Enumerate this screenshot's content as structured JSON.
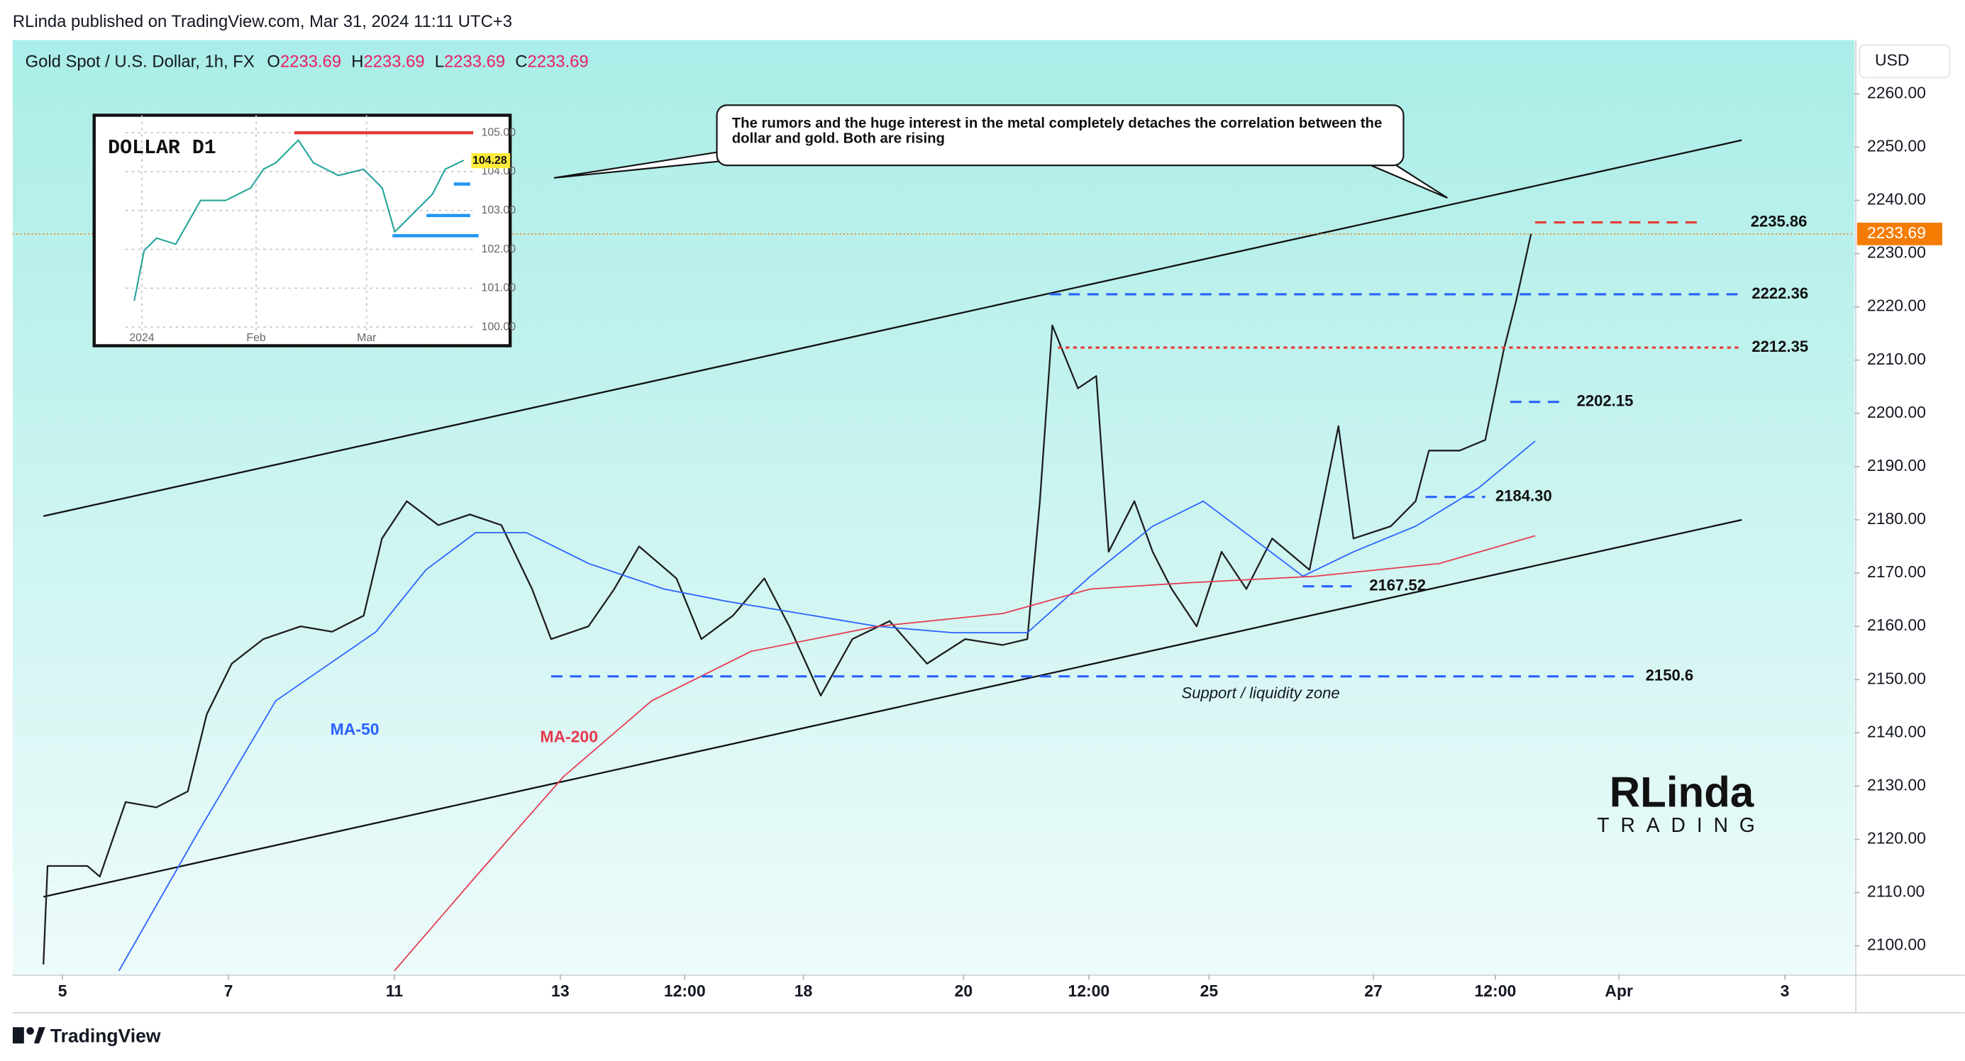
{
  "header": {
    "publisher": "RLinda published on TradingView.com, Mar 31, 2024 11:11 UTC+3",
    "footer": "TradingView",
    "logo": [
      "RLinda",
      "TRADING"
    ]
  },
  "chart_data": [
    {
      "type": "line",
      "title": "Gold Spot / U.S. Dollar, 1h, FX",
      "currency": "USD",
      "ohlc": [
        {
          "label": "O",
          "value": 2233.69
        },
        {
          "label": "H",
          "value": 2233.69
        },
        {
          "label": "L",
          "value": 2233.69
        },
        {
          "label": "C",
          "value": 2233.69
        }
      ],
      "xlim": [
        -0.6,
        21.6
      ],
      "ylim": [
        2094.6,
        2270.1
      ],
      "xticks": [
        {
          "value": 0,
          "label": "5"
        },
        {
          "value": 2,
          "label": "7"
        },
        {
          "value": 4,
          "label": "11"
        },
        {
          "value": 6,
          "label": "13"
        },
        {
          "value": 7.5,
          "label": "12:00"
        },
        {
          "value": 8.93,
          "label": "18"
        },
        {
          "value": 10.86,
          "label": "20"
        },
        {
          "value": 12.37,
          "label": "12:00"
        },
        {
          "value": 13.82,
          "label": "25"
        },
        {
          "value": 15.8,
          "label": "27"
        },
        {
          "value": 17.27,
          "label": "12:00"
        },
        {
          "value": 18.76,
          "label": "Apr"
        },
        {
          "value": 20.76,
          "label": "3"
        }
      ],
      "yticks": [
        {
          "value": 2100,
          "label": "2100.00"
        },
        {
          "value": 2110,
          "label": "2110.00"
        },
        {
          "value": 2120,
          "label": "2120.00"
        },
        {
          "value": 2130,
          "label": "2130.00"
        },
        {
          "value": 2140,
          "label": "2140.00"
        },
        {
          "value": 2150,
          "label": "2150.00"
        },
        {
          "value": 2160,
          "label": "2160.00"
        },
        {
          "value": 2170,
          "label": "2170.00"
        },
        {
          "value": 2180,
          "label": "2180.00"
        },
        {
          "value": 2190,
          "label": "2190.00"
        },
        {
          "value": 2200,
          "label": "2200.00"
        },
        {
          "value": 2210,
          "label": "2210.00"
        },
        {
          "value": 2220,
          "label": "2220.00"
        },
        {
          "value": 2230,
          "label": "2230.00"
        },
        {
          "value": 2240,
          "label": "2240.00"
        },
        {
          "value": 2250,
          "label": "2250.00"
        },
        {
          "value": 2260,
          "label": "2260.00"
        }
      ],
      "grid": false,
      "series": [
        {
          "color": "#1e1e1e",
          "x": [
            -0.23,
            -0.18,
            0.3,
            0.45,
            0.76,
            1.13,
            1.51,
            1.74,
            2.04,
            2.42,
            2.87,
            3.25,
            3.63,
            3.85,
            4.15,
            4.53,
            4.91,
            5.29,
            5.66,
            5.89,
            6.34,
            6.65,
            6.95,
            7.4,
            7.7,
            8.08,
            8.46,
            8.76,
            9.14,
            9.52,
            9.97,
            10.42,
            10.88,
            11.33,
            11.63,
            11.78,
            11.93,
            12.24,
            12.46,
            12.61,
            12.92,
            13.14,
            13.37,
            13.67,
            13.97,
            14.27,
            14.58,
            15.03,
            15.38,
            15.56,
            16.01,
            16.31,
            16.47,
            16.84,
            17.15,
            17.37,
            17.52,
            17.7
          ],
          "values": [
            2096.5,
            2115,
            2115,
            2113,
            2127,
            2126,
            2129,
            2143.5,
            2153,
            2157.6,
            2160,
            2159,
            2162,
            2176.5,
            2183.5,
            2179,
            2181,
            2179,
            2167,
            2157.6,
            2160,
            2167,
            2175,
            2169,
            2157.6,
            2162,
            2169,
            2160,
            2147,
            2157.6,
            2161,
            2153,
            2157.6,
            2156.5,
            2157.6,
            2183.5,
            2216.5,
            2204.7,
            2207,
            2174,
            2183.5,
            2174,
            2167,
            2160,
            2174,
            2167,
            2176.5,
            2170.6,
            2197.6,
            2176.5,
            2178.8,
            2183.5,
            2193,
            2193,
            2195,
            2211.8,
            2221,
            2233.69
          ]
        },
        {
          "name": "MA-50",
          "color": "#2962ff",
          "x": [
            0.68,
            1.66,
            2.57,
            3.78,
            4.38,
            4.98,
            5.59,
            6.34,
            7.25,
            8.0,
            8.9,
            9.82,
            10.73,
            11.63,
            12.39,
            13.14,
            13.75,
            14.35,
            14.95,
            15.56,
            16.31,
            17.07,
            17.75
          ],
          "values": [
            2095.3,
            2122,
            2146,
            2159,
            2170.6,
            2177.6,
            2177.6,
            2171.8,
            2167,
            2164.7,
            2162.4,
            2160,
            2158.8,
            2158.8,
            2169.4,
            2178.8,
            2183.5,
            2176.5,
            2169.4,
            2174,
            2178.8,
            2186,
            2194.8
          ]
        },
        {
          "name": "MA-200",
          "color": "#e53950",
          "x": [
            4.0,
            4.98,
            6.04,
            7.1,
            8.3,
            9.82,
            11.33,
            12.39,
            13.6,
            15.1,
            16.6,
            17.75
          ],
          "values": [
            2095.3,
            2113,
            2131.8,
            2146,
            2155.3,
            2160,
            2162.4,
            2167,
            2168.2,
            2169.4,
            2171.8,
            2177
          ]
        }
      ],
      "channel": [
        {
          "x": [
            -0.23,
            20.24
          ],
          "values": [
            2180.7,
            2251.3
          ]
        },
        {
          "x": [
            -0.23,
            20.24
          ],
          "values": [
            2109.2,
            2180
          ]
        }
      ],
      "last_price": {
        "value": 2233.69,
        "color": "#f57c00"
      },
      "levels": [
        {
          "value": 2235.86,
          "label": "2235.86",
          "color": "#e53935",
          "from": 17.75,
          "to": 19.79
        },
        {
          "value": 2222.36,
          "label": "2222.36",
          "color": "#2962ff",
          "from": 11.9,
          "to": 20.24
        },
        {
          "value": 2212.35,
          "label": "2212.35",
          "color": "#e53935",
          "from": 12.0,
          "to": 20.24
        },
        {
          "value": 2202.15,
          "label": "2202.15",
          "color": "#2962ff",
          "from": 17.45,
          "to": 18.13
        },
        {
          "value": 2184.3,
          "label": "2184.30",
          "color": "#2962ff",
          "from": 16.43,
          "to": 17.15
        },
        {
          "value": 2167.52,
          "label": "2167.52",
          "color": "#2962ff",
          "from": 14.95,
          "to": 15.63
        },
        {
          "value": 2150.6,
          "color": "#2962ff",
          "from": 5.89,
          "to": 18.96
        }
      ],
      "annotation": "The rumors and the huge interest in the metal completely detaches the correlation between the dollar and gold. Both are rising",
      "zone_label": "Support / liquidity zone"
    },
    {
      "type": "line",
      "title": "DOLLAR D1",
      "xlim": [
        -3.3,
        88.8
      ],
      "ylim": [
        99.52,
        105.45
      ],
      "xticks": [
        {
          "value": 1,
          "label": "2024"
        },
        {
          "value": 31,
          "label": "Feb"
        },
        {
          "value": 60,
          "label": "Mar"
        }
      ],
      "yticks": [
        {
          "value": 100,
          "label": "100.00"
        },
        {
          "value": 101,
          "label": "101.00"
        },
        {
          "value": 102,
          "label": "102.00"
        },
        {
          "value": 103,
          "label": "103.00"
        },
        {
          "value": 104,
          "label": "104.00"
        },
        {
          "value": 105,
          "label": "105.00"
        }
      ],
      "grid": true,
      "series": [
        {
          "color": "#26a69a",
          "x": [
            -1,
            1.6,
            4.9,
            9.9,
            16.4,
            23,
            29.6,
            32.9,
            36.2,
            42.1,
            46,
            52.6,
            59.2,
            64.1,
            67.4,
            72.4,
            77.3,
            80.6,
            85.5
          ],
          "values": [
            100.68,
            101.97,
            102.29,
            102.13,
            103.26,
            103.26,
            103.58,
            104.06,
            104.23,
            104.81,
            104.23,
            103.9,
            104.06,
            103.58,
            102.45,
            102.94,
            103.42,
            104.06,
            104.29
          ]
        }
      ],
      "last_price": {
        "value": 104.28,
        "color": "#ffeb3b"
      },
      "levels": [
        {
          "value": 105.0,
          "color": "#e53935",
          "from": 41,
          "to": 88
        },
        {
          "value": 103.68,
          "color": "#2196f3",
          "from": 82.9,
          "to": 87.2
        },
        {
          "value": 102.87,
          "color": "#2196f3",
          "from": 75.7,
          "to": 87.2
        },
        {
          "value": 102.35,
          "color": "#2196f3",
          "from": 66.8,
          "to": 89.4
        }
      ]
    }
  ]
}
